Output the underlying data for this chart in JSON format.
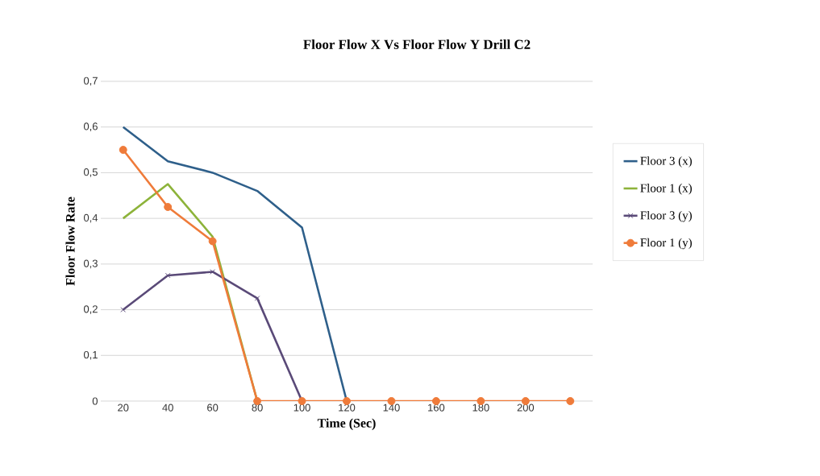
{
  "chart_data": {
    "type": "line",
    "title": "Floor Flow X  Vs Floor Flow Y Drill C2",
    "xlabel": "Time (Sec)",
    "ylabel": "Floor Flow Rate",
    "categories": [
      "20",
      "40",
      "60",
      "80",
      "100",
      "120",
      "140",
      "160",
      "180",
      "200",
      null
    ],
    "series": [
      {
        "name": "Floor 3 (x)",
        "color": "#2e5f8a",
        "marker": "none",
        "values": [
          0.6,
          0.525,
          0.5,
          0.46,
          0.38,
          0,
          null,
          null,
          null,
          null,
          null
        ]
      },
      {
        "name": "Floor 1 (x)",
        "color": "#8db33a",
        "marker": "none",
        "values": [
          0.4,
          0.475,
          0.36,
          0,
          null,
          null,
          null,
          null,
          null,
          null,
          null
        ]
      },
      {
        "name": "Floor 3 (y)",
        "color": "#5a4a78",
        "marker": "cross",
        "values": [
          0.2,
          0.275,
          0.283,
          0.225,
          0,
          null,
          null,
          null,
          null,
          null,
          null
        ]
      },
      {
        "name": "Floor 1 (y)",
        "color": "#ef7b3a",
        "marker": "circle",
        "values": [
          0.55,
          0.425,
          0.35,
          0,
          0,
          0,
          0,
          0,
          0,
          0,
          0
        ]
      }
    ],
    "ylim": [
      0,
      0.7
    ],
    "yticks": [
      0,
      {
        "value": 0.1,
        "label": "0,1"
      },
      {
        "value": 0.2,
        "label": "0,2"
      },
      {
        "value": 0.3,
        "label": "0,3"
      },
      {
        "value": 0.4,
        "label": "0,4"
      },
      {
        "value": 0.5,
        "label": "0,5"
      },
      {
        "value": 0.6,
        "label": "0,6"
      },
      {
        "value": 0.7,
        "label": "0,7"
      }
    ],
    "grid": "y",
    "legend": "right"
  }
}
